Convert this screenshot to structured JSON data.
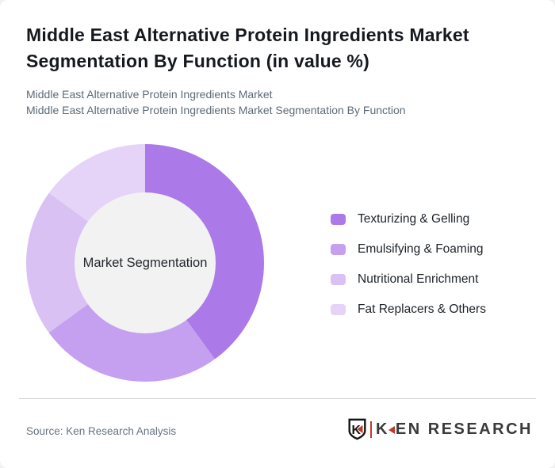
{
  "page": {
    "outer_background": "#f1f1f1",
    "card_background": "#ffffff"
  },
  "header": {
    "title": "Middle East Alternative Protein Ingredients Market Segmentation By Function (in value %)",
    "subtitle_lines": [
      "Middle East Alternative Protein Ingredients Market",
      "Middle East Alternative Protein Ingredients Market Segmentation By Function"
    ]
  },
  "chart_data": {
    "type": "pie",
    "variant": "donut",
    "title": "Middle East Alternative Protein Ingredients Market Segmentation By Function (in value %)",
    "unit": "value %",
    "center_label": "Market Segmentation",
    "labels": [
      "Texturizing & Gelling",
      "Emulsifying & Foaming",
      "Nutritional Enrichment",
      "Fat Replacers & Others"
    ],
    "values": [
      40,
      25,
      20,
      15
    ],
    "colors": [
      "#ab7ae8",
      "#c5a0f0",
      "#d9c1f3",
      "#e6d4f8"
    ],
    "start_angle_deg": 0,
    "direction": "clockwise",
    "inner_radius_ratio": 0.59,
    "center_fill": "#f2f2f3",
    "legend_position": "right",
    "data_labels_shown": false
  },
  "footer": {
    "source": "Source: Ken Research Analysis",
    "logo": {
      "shield_letter": "K",
      "brand_k": "K",
      "brand_rest": "EN RESEARCH",
      "accent_color": "#c0392b",
      "text_color": "#3a3a3a"
    }
  }
}
